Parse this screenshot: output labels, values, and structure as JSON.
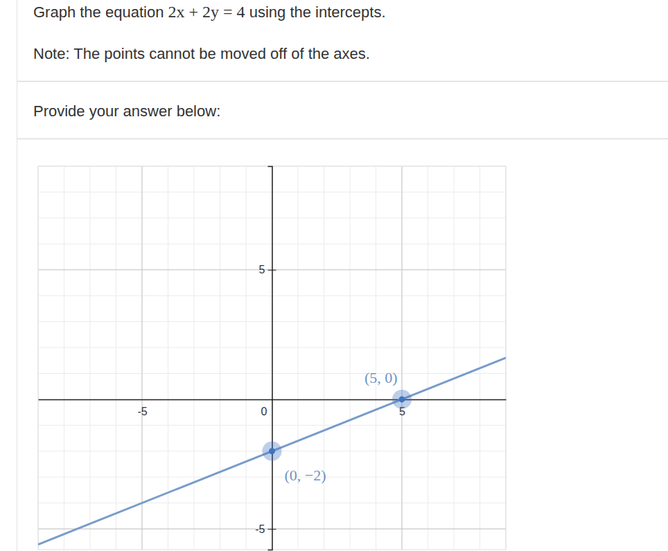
{
  "page": {
    "question": [
      "Graph the equation ",
      "2x + 2y = 4",
      " using the intercepts."
    ],
    "note": "Note: The points cannot be moved off of the axes.",
    "prompt": "Provide your answer below:"
  },
  "chart_data": {
    "type": "line",
    "xlim": [
      -9,
      9
    ],
    "ylim": [
      -5.8,
      9
    ],
    "xticks": [
      -5,
      0,
      5
    ],
    "yticks": [
      -5,
      5
    ],
    "grid": true,
    "series": [
      {
        "type": "line",
        "color": "#779cca",
        "x": [
          -9,
          9
        ],
        "values": [
          -5.6,
          1.6
        ]
      },
      {
        "type": "scatter",
        "color": "#3f74c0",
        "marker": "circle",
        "x": [
          0,
          5
        ],
        "values": [
          -2,
          0
        ],
        "labels": [
          "(0, −2)",
          "(5, 0)"
        ]
      }
    ]
  }
}
